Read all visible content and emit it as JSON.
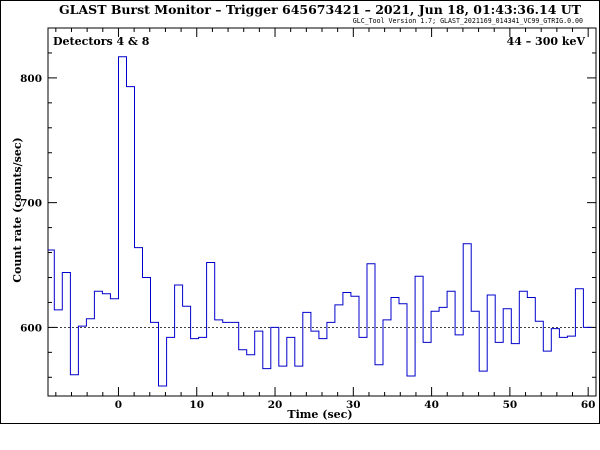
{
  "chart_data": {
    "type": "line",
    "title": "GLAST Burst Monitor  –  Trigger 645673421  –  2021, Jun 18, 01:43:36.14 UT",
    "subtitle": "GLC_Tool Version 1.7; GLAST_2021169_014341_VC99_GTRIG.0.00",
    "annotation_left": "Detectors 4 & 8",
    "annotation_right": "44 – 300 keV",
    "xlabel": "Time (sec)",
    "ylabel": "Count rate (counts/sec)",
    "xlim": [
      -9,
      61
    ],
    "ylim": [
      545,
      840
    ],
    "xticks": [
      0,
      10,
      20,
      30,
      40,
      50,
      60
    ],
    "yticks": [
      600,
      700,
      800
    ],
    "background_level": 600,
    "colors": {
      "series": "#0000cc",
      "axes": "#000000",
      "background": "#ffffff"
    },
    "bin_width": 1.024,
    "bin_start": -9.216,
    "values": [
      662,
      614,
      644,
      562,
      601,
      607,
      629,
      627,
      623,
      817,
      793,
      664,
      640,
      604,
      553,
      592,
      634,
      617,
      591,
      592,
      652,
      606,
      604,
      604,
      582,
      578,
      597,
      567,
      600,
      569,
      592,
      569,
      612,
      597,
      591,
      604,
      618,
      628,
      625,
      592,
      651,
      570,
      606,
      624,
      619,
      561,
      641,
      588,
      613,
      616,
      629,
      594,
      667,
      613,
      565,
      626,
      588,
      615,
      587,
      629,
      624,
      605,
      581,
      599,
      592,
      593,
      631,
      600
    ]
  }
}
